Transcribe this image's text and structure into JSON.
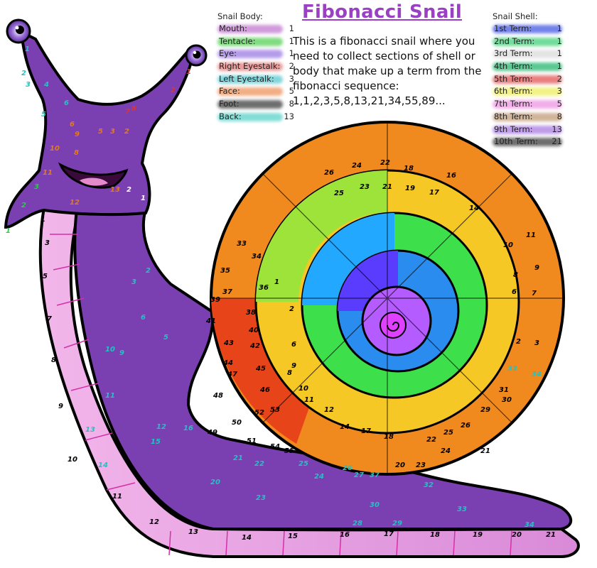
{
  "title": "Fibonacci Snail",
  "description": "This is a fibonacci snail where you need to collect sections of shell or body that make up a term from the fibonacci sequence: 1,1,2,3,5,8,13,21,34,55,89...",
  "body_legend": {
    "heading": "Snail Body:",
    "items": [
      {
        "label": "Mouth:",
        "value": "1",
        "color": "#c98ad6"
      },
      {
        "label": "Tentacle:",
        "value": "1",
        "color": "#6bd66b"
      },
      {
        "label": "Eye:",
        "value": "1",
        "color": "#a98be6"
      },
      {
        "label": "Right Eyestalk:",
        "value": "2",
        "color": "#e68a8a"
      },
      {
        "label": "Left Eyestalk:",
        "value": "3",
        "color": "#6ecfd6"
      },
      {
        "label": "Face:",
        "value": "5",
        "color": "#f0a070"
      },
      {
        "label": "Foot:",
        "value": "8",
        "color": "#555555"
      },
      {
        "label": "Back:",
        "value": "13",
        "color": "#6ed8d0"
      }
    ]
  },
  "shell_legend": {
    "heading": "Snail Shell:",
    "items": [
      {
        "label": "1st Term:",
        "value": "1",
        "color": "#5a6de6"
      },
      {
        "label": "2nd Term:",
        "value": "1",
        "color": "#5ad68a"
      },
      {
        "label": "3rd Term:",
        "value": "1",
        "color": "#e0e0e0"
      },
      {
        "label": "4th Term:",
        "value": "1",
        "color": "#3fbf80"
      },
      {
        "label": "5th Term:",
        "value": "2",
        "color": "#e66a6a"
      },
      {
        "label": "6th Term:",
        "value": "3",
        "color": "#f0f070"
      },
      {
        "label": "7th Term:",
        "value": "5",
        "color": "#f0a0e6"
      },
      {
        "label": "8th Term:",
        "value": "8",
        "color": "#c8a888"
      },
      {
        "label": "9th Term:",
        "value": "13",
        "color": "#b58be6"
      },
      {
        "label": "10th Term:",
        "value": "21",
        "color": "#555555"
      }
    ]
  },
  "art": {
    "shell_numbers": [
      "26",
      "24",
      "22",
      "18",
      "16",
      "25",
      "23",
      "21",
      "19",
      "17",
      "27",
      "29",
      "30",
      "31",
      "32",
      "28",
      "20",
      "15",
      "14",
      "13",
      "12",
      "11",
      "10",
      "9",
      "8",
      "7",
      "6",
      "5",
      "4",
      "3",
      "2",
      "1",
      "33",
      "34",
      "35",
      "36",
      "37",
      "38",
      "39",
      "40",
      "41",
      "42",
      "43",
      "44",
      "45",
      "46",
      "47",
      "48",
      "49",
      "50",
      "51",
      "52",
      "53",
      "54",
      "55"
    ],
    "foot_numbers": [
      "1",
      "2",
      "3",
      "4",
      "5",
      "6",
      "7",
      "8",
      "9",
      "10",
      "11",
      "12",
      "13",
      "14",
      "15",
      "16",
      "17",
      "18",
      "19",
      "20",
      "21"
    ],
    "back_numbers": [
      "1",
      "2",
      "3",
      "4",
      "5",
      "6",
      "7",
      "8",
      "9",
      "10",
      "11",
      "12",
      "13",
      "14",
      "15",
      "16",
      "17",
      "18",
      "19",
      "20",
      "21",
      "22",
      "23",
      "24",
      "25",
      "26",
      "27",
      "28",
      "29",
      "30",
      "31",
      "32",
      "33",
      "34"
    ]
  }
}
